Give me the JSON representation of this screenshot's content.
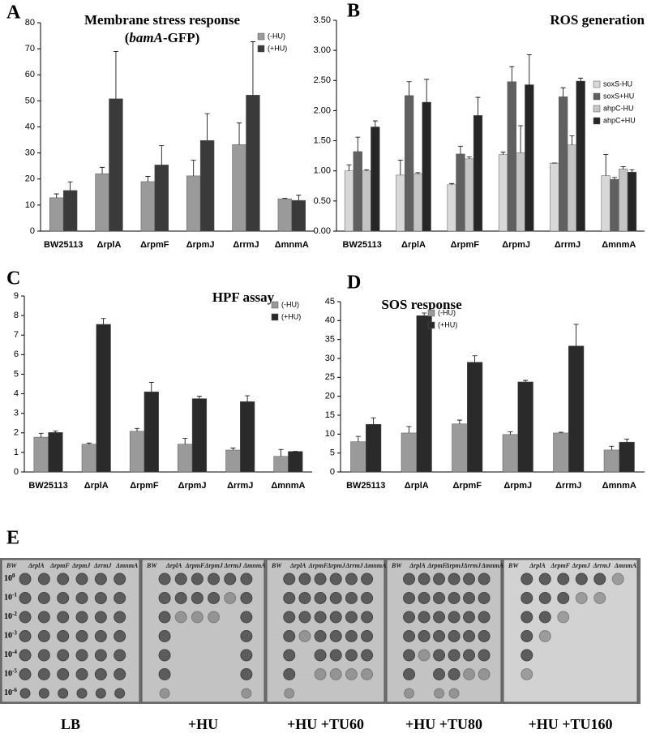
{
  "chart_data": [
    {
      "type": "bar",
      "label": "A",
      "title": "Membrane stress response",
      "subtitle": [
        "(",
        "bamA",
        "-GFP)"
      ],
      "categories": [
        "BW25113",
        "ΔrplA",
        "ΔrpmF",
        "ΔrpmJ",
        "ΔrrmJ",
        "ΔmnmA"
      ],
      "series": [
        {
          "name": "(-HU)",
          "color": "#9a9a9a",
          "values": [
            12.8,
            22,
            19,
            21.2,
            33.2,
            12.4
          ],
          "errors": [
            1.5,
            2.5,
            2,
            6,
            8.3,
            0.2
          ]
        },
        {
          "name": "(+HU)",
          "color": "#3a3a3a",
          "values": [
            15.6,
            50.8,
            25.4,
            34.8,
            52.2,
            11.8
          ],
          "errors": [
            3.3,
            18.2,
            7.4,
            10.3,
            20.5,
            2
          ]
        }
      ],
      "ylim": [
        0,
        80
      ],
      "yticks": [
        0,
        10,
        20,
        30,
        40,
        50,
        60,
        70,
        80
      ],
      "legend": "upper right"
    },
    {
      "type": "bar",
      "label": "B",
      "title": "ROS generation",
      "categories": [
        "BW25113",
        "ΔrplA",
        "ΔrpmF",
        "ΔrpmJ",
        "ΔrrmJ",
        "ΔmnmA"
      ],
      "series": [
        {
          "name": "soxS-HU",
          "color": "#d8d8d8",
          "values": [
            1.0,
            0.93,
            0.77,
            1.27,
            1.13,
            0.92
          ],
          "errors": [
            0.1,
            0.25,
            0.02,
            0.04,
            0,
            0.35
          ]
        },
        {
          "name": "soxS+HU",
          "color": "#606060",
          "values": [
            1.32,
            2.25,
            1.28,
            2.48,
            2.23,
            0.86
          ],
          "errors": [
            0.24,
            0.23,
            0.13,
            0.25,
            0.15,
            0.03
          ]
        },
        {
          "name": "ahpC-HU",
          "color": "#c4c4c4",
          "values": [
            1.0,
            0.95,
            1.2,
            1.3,
            1.43,
            1.03
          ],
          "errors": [
            0.02,
            0.02,
            0.03,
            0.45,
            0.15,
            0.04
          ]
        },
        {
          "name": "ahpC+HU",
          "color": "#262626",
          "values": [
            1.73,
            2.14,
            1.92,
            2.43,
            2.49,
            0.98
          ],
          "errors": [
            0.1,
            0.38,
            0.3,
            0.5,
            0.05,
            0.04
          ]
        }
      ],
      "ylim": [
        0,
        3.5
      ],
      "yticks": [
        {
          "value": 0,
          "label": "0.00"
        },
        {
          "value": 0.5,
          "label": "0.50"
        },
        {
          "value": 1,
          "label": "1.00"
        },
        {
          "value": 1.5,
          "label": "1.50"
        },
        {
          "value": 2,
          "label": "2.00"
        },
        {
          "value": 2.5,
          "label": "2.50"
        },
        {
          "value": 3,
          "label": "3.00"
        },
        {
          "value": 3.5,
          "label": "3.50"
        }
      ],
      "legend": "center right"
    },
    {
      "type": "bar",
      "label": "C",
      "title": "HPF assay",
      "categories": [
        "BW25113",
        "ΔrplA",
        "ΔrpmF",
        "ΔrpmJ",
        "ΔrrmJ",
        "ΔmnmA"
      ],
      "series": [
        {
          "name": "(-HU)",
          "color": "#9a9a9a",
          "values": [
            1.78,
            1.42,
            2.08,
            1.42,
            1.12,
            0.8
          ],
          "errors": [
            0.2,
            0.06,
            0.15,
            0.3,
            0.1,
            0.35
          ]
        },
        {
          "name": "(+HU)",
          "color": "#2a2a2a",
          "values": [
            2.02,
            7.55,
            4.1,
            3.75,
            3.6,
            1.05
          ],
          "errors": [
            0.07,
            0.3,
            0.48,
            0.12,
            0.3,
            0
          ]
        }
      ],
      "ylim": [
        0,
        9
      ],
      "yticks": [
        0,
        1,
        2,
        3,
        4,
        5,
        6,
        7,
        8,
        9
      ],
      "legend": "upper right"
    },
    {
      "type": "bar",
      "label": "D",
      "title": "SOS response",
      "categories": [
        "BW25113",
        "ΔrplA",
        "ΔrpmF",
        "ΔrpmJ",
        "ΔrrmJ",
        "ΔmnmA"
      ],
      "series": [
        {
          "name": "(-HU)",
          "color": "#9a9a9a",
          "values": [
            8,
            10.3,
            12.7,
            9.9,
            10.3,
            5.8
          ],
          "errors": [
            1.4,
            1.7,
            1,
            0.7,
            0.2,
            1
          ]
        },
        {
          "name": "(+HU)",
          "color": "#2a2a2a",
          "values": [
            12.6,
            41.3,
            29,
            23.8,
            33.3,
            7.9
          ],
          "errors": [
            1.7,
            0.7,
            1.7,
            0.4,
            5.7,
            0.8
          ]
        }
      ],
      "ylim": [
        0,
        45
      ],
      "yticks": [
        0,
        5,
        10,
        15,
        20,
        25,
        30,
        35,
        40,
        45
      ],
      "legend": "upper left"
    }
  ],
  "spot_assay": {
    "label": "E",
    "strains": [
      "BW",
      "ΔrplA",
      "ΔrpmF",
      "ΔrpmJ",
      "ΔrrmJ",
      "ΔmnmA"
    ],
    "dilutions": [
      {
        "base": "10",
        "exp": "0"
      },
      {
        "base": "10",
        "exp": "-1"
      },
      {
        "base": "10",
        "exp": "-2"
      },
      {
        "base": "10",
        "exp": "-3"
      },
      {
        "base": "10",
        "exp": "-4"
      },
      {
        "base": "10",
        "exp": "-5"
      },
      {
        "base": "10",
        "exp": "-6"
      }
    ],
    "plates": [
      "LB",
      "+HU",
      "+HU +TU60",
      "+HU +TU80",
      "+HU +TU160"
    ]
  }
}
